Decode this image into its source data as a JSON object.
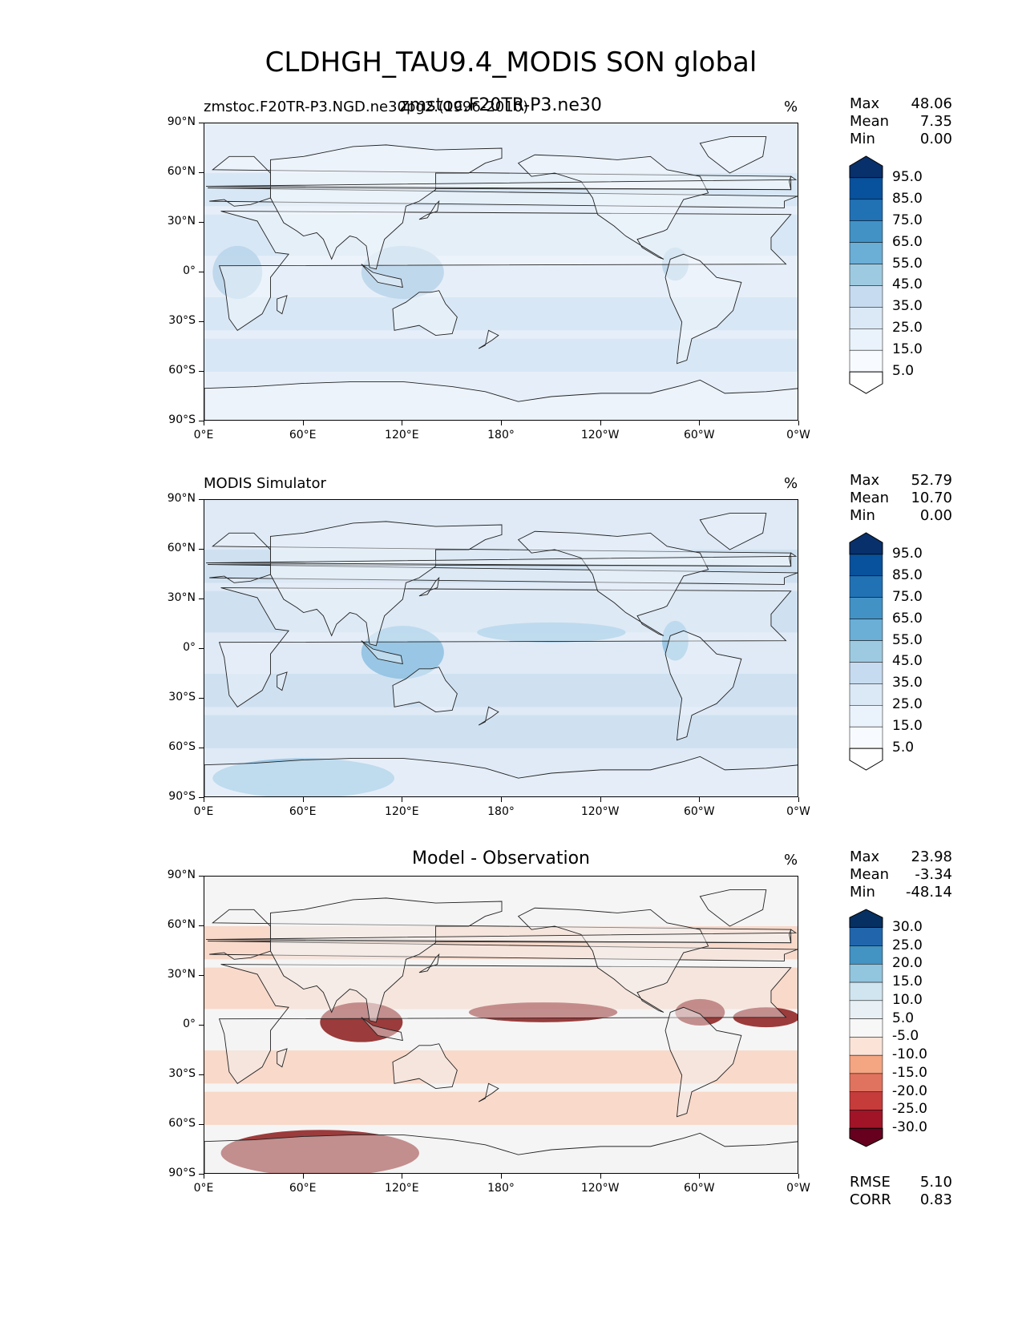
{
  "figure": {
    "title": "CLDHGH_TAU9.4_MODIS SON global"
  },
  "panels": [
    {
      "id": "test",
      "title_left": "zmstoc.F20TR-P3.NGD.ne30pg2.(1996-2010)",
      "title_center": "zmstoc.F20TR-P3.ne30",
      "units": "%",
      "stats": [
        {
          "label": "Max",
          "value": "48.06"
        },
        {
          "label": "Mean",
          "value": "7.35"
        },
        {
          "label": "Min",
          "value": "0.00"
        }
      ],
      "colorbar": {
        "levels": [
          "95.0",
          "85.0",
          "75.0",
          "65.0",
          "55.0",
          "45.0",
          "35.0",
          "25.0",
          "15.0",
          "5.0"
        ],
        "colors": [
          "#08306b",
          "#08519c",
          "#2171b5",
          "#4292c6",
          "#6baed6",
          "#9ecae1",
          "#c6dbef",
          "#dbe9f6",
          "#eaf2fb",
          "#f7fbff",
          "#ffffff"
        ]
      },
      "field_colors": {
        "land": "#f4f8fd",
        "ocean": "#e6eff9",
        "band": "#d5e5f4",
        "hot": "#b9d4ea"
      }
    },
    {
      "id": "ref",
      "title_left": "MODIS Simulator",
      "title_center": "",
      "units": "%",
      "stats": [
        {
          "label": "Max",
          "value": "52.79"
        },
        {
          "label": "Mean",
          "value": "10.70"
        },
        {
          "label": "Min",
          "value": "0.00"
        }
      ],
      "colorbar": {
        "levels": [
          "95.0",
          "85.0",
          "75.0",
          "65.0",
          "55.0",
          "45.0",
          "35.0",
          "25.0",
          "15.0",
          "5.0"
        ],
        "colors": [
          "#08306b",
          "#08519c",
          "#2171b5",
          "#4292c6",
          "#6baed6",
          "#9ecae1",
          "#c6dbef",
          "#dbe9f6",
          "#eaf2fb",
          "#f7fbff",
          "#ffffff"
        ]
      },
      "field_colors": {
        "land": "#eef4fb",
        "ocean": "#dfeaf6",
        "band": "#cadef0",
        "hot": "#8dbfe0"
      }
    },
    {
      "id": "diff",
      "title_left": "",
      "title_center": "Model - Observation",
      "units": "%",
      "stats": [
        {
          "label": "Max",
          "value": "23.98"
        },
        {
          "label": "Mean",
          "value": "-3.34"
        },
        {
          "label": "Min",
          "value": "-48.14"
        }
      ],
      "colorbar": {
        "levels": [
          "30.0",
          "25.0",
          "20.0",
          "15.0",
          "10.0",
          "5.0",
          "-5.0",
          "-10.0",
          "-15.0",
          "-20.0",
          "-25.0",
          "-30.0"
        ],
        "colors": [
          "#053061",
          "#2166ac",
          "#4393c3",
          "#92c5de",
          "#d1e5f0",
          "#e8f0f5",
          "#f7f7f7",
          "#fbe3d7",
          "#f4a582",
          "#e0735f",
          "#c53c3b",
          "#a11427",
          "#67001f"
        ]
      },
      "field_colors": {
        "land": "#f5f5f5",
        "ocean": "#f5f5f5",
        "band": "#f9d2bf",
        "hot": "#8b1a1a"
      },
      "metrics": [
        {
          "label": "RMSE",
          "value": "5.10"
        },
        {
          "label": "CORR",
          "value": "0.83"
        }
      ]
    }
  ],
  "axes": {
    "lat_labels": [
      "90°N",
      "60°N",
      "30°N",
      "0°",
      "30°S",
      "60°S",
      "90°S"
    ],
    "lon_labels": [
      "0°E",
      "60°E",
      "120°E",
      "180°",
      "120°W",
      "60°W",
      "0°W"
    ]
  }
}
